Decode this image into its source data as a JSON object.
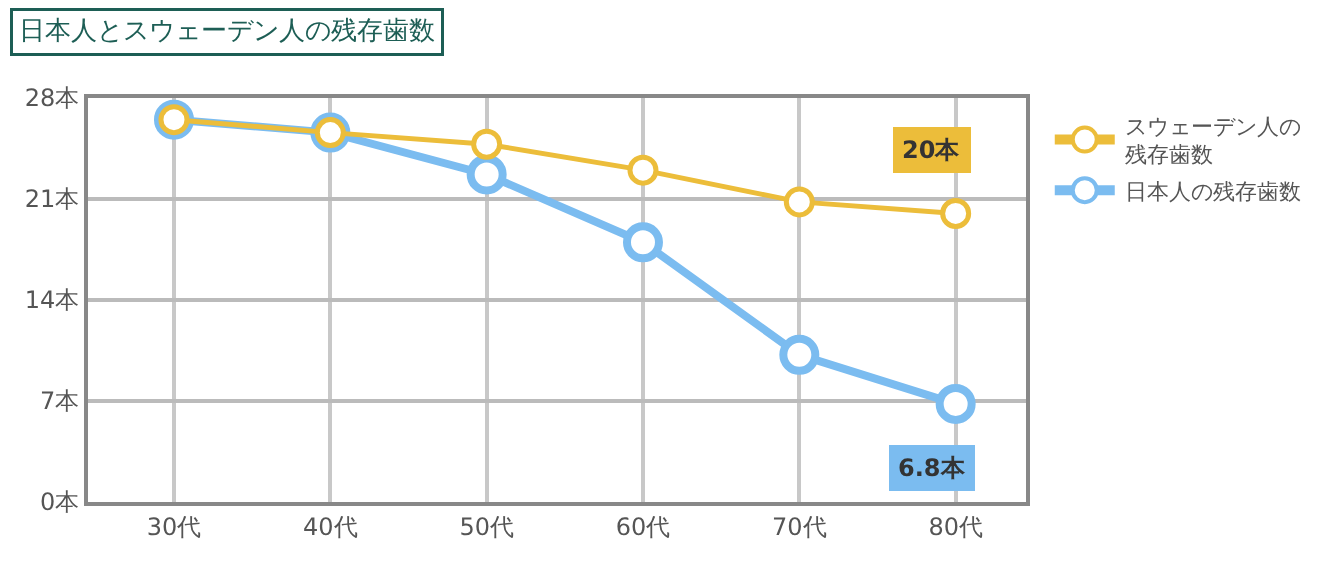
{
  "chart_data": {
    "type": "line",
    "title": "日本人とスウェーデン人の残存歯数",
    "categories": [
      "30代",
      "40代",
      "50代",
      "60代",
      "70代",
      "80代"
    ],
    "series": [
      {
        "name": "スウェーデン人の残存歯数",
        "color": "#ecbd3a",
        "values": [
          26.5,
          25.6,
          24.8,
          23.0,
          20.8,
          20
        ],
        "value_labels": [
          null,
          null,
          null,
          null,
          null,
          "20本"
        ]
      },
      {
        "name": "日本人の残存歯数",
        "color": "#7bbcf0",
        "values": [
          26.5,
          25.6,
          22.7,
          18.0,
          10.2,
          6.8
        ],
        "value_labels": [
          null,
          null,
          null,
          null,
          null,
          "6.8本"
        ]
      }
    ],
    "ylim": [
      0,
      28
    ],
    "yticks": [
      {
        "value": 0,
        "label": "0本"
      },
      {
        "value": 7,
        "label": "7本"
      },
      {
        "value": 14,
        "label": "14本"
      },
      {
        "value": 21,
        "label": "21本"
      },
      {
        "value": 28,
        "label": "28本"
      }
    ],
    "grid": true,
    "legend": "right",
    "marker": "circle",
    "line_style": "solid"
  }
}
